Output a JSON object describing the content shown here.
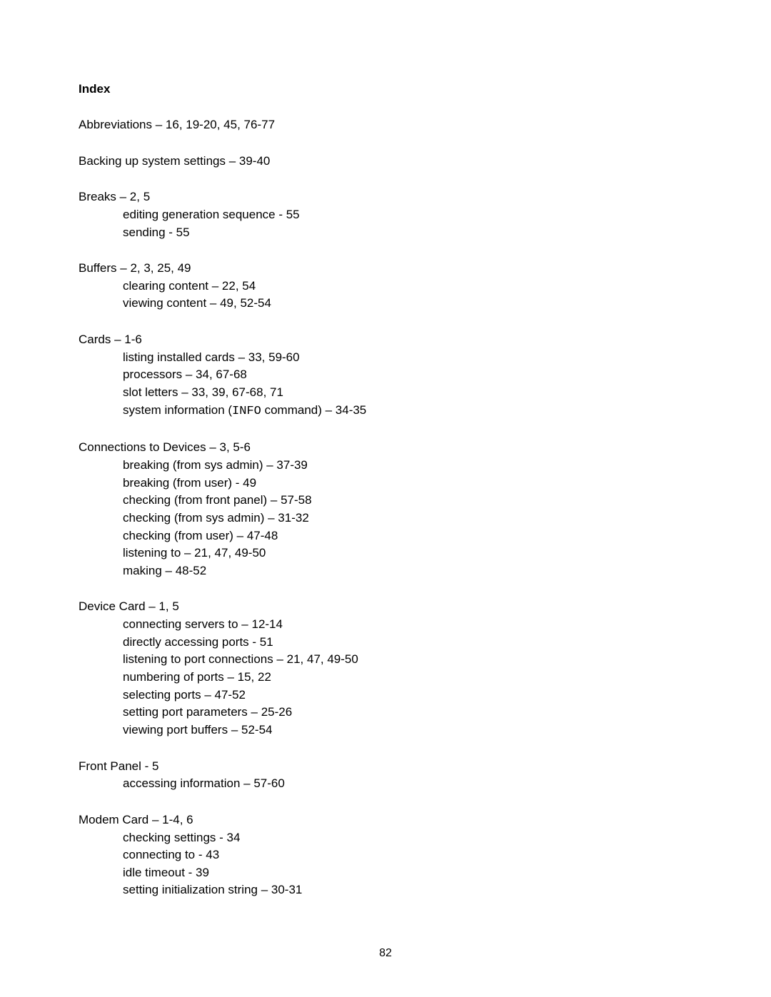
{
  "title": "Index",
  "entries": [
    {
      "main": "Abbreviations – 16, 19-20, 45, 76-77",
      "subs": []
    },
    {
      "main": "Backing up system settings – 39-40",
      "subs": []
    },
    {
      "main": "Breaks – 2, 5",
      "subs": [
        "editing generation sequence - 55",
        "sending - 55"
      ]
    },
    {
      "main": "Buffers – 2, 3, 25, 49",
      "subs": [
        "clearing content – 22, 54",
        "viewing content – 49, 52-54"
      ]
    },
    {
      "main": "Cards – 1-6",
      "subs": [
        "listing installed cards – 33, 59-60",
        "processors – 34, 67-68",
        "slot letters – 33, 39, 67-68, 71",
        {
          "pre": "system information (",
          "mono": "INFO",
          "post": " command) – 34-35"
        }
      ]
    },
    {
      "main": "Connections to Devices – 3, 5-6",
      "subs": [
        "breaking (from sys admin) – 37-39",
        "breaking (from user) - 49",
        "checking (from front panel) – 57-58",
        "checking (from sys admin) – 31-32",
        "checking (from user) – 47-48",
        "listening to – 21, 47, 49-50",
        "making – 48-52"
      ]
    },
    {
      "main": "Device Card – 1, 5",
      "subs": [
        "connecting servers to – 12-14",
        "directly accessing ports - 51",
        "listening to port connections – 21, 47, 49-50",
        "numbering of ports – 15, 22",
        "selecting ports – 47-52",
        "setting port parameters – 25-26",
        "viewing port buffers – 52-54"
      ]
    },
    {
      "main": "Front Panel - 5",
      "subs": [
        "accessing information – 57-60"
      ]
    },
    {
      "main": "Modem Card – 1-4, 6",
      "subs": [
        "checking settings - 34",
        "connecting to - 43",
        "idle timeout - 39",
        "setting initialization string – 30-31"
      ]
    }
  ],
  "pageNumber": "82"
}
